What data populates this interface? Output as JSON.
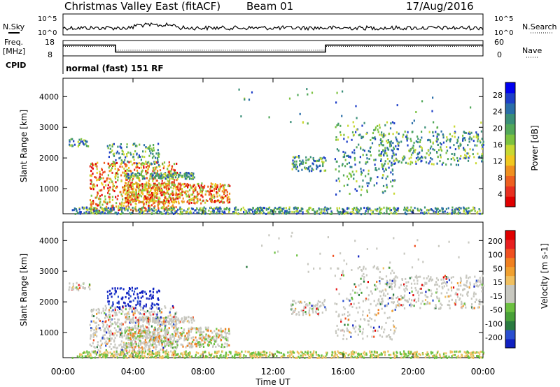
{
  "header": {
    "title": "Christmas Valley East (fitACF)",
    "beam": "Beam 01",
    "date": "17/Aug/2016"
  },
  "top_labels": {
    "nsky": "N.Sky",
    "nsearch": "N.Search",
    "freq": "Freq.",
    "freq_unit": "[MHz]",
    "nave": "Nave",
    "cpid": "CPID",
    "cpid_value": "normal (fast) 151 RF",
    "noise_ticks": [
      "10^5",
      "10^0"
    ],
    "freq_ticks": [
      "18",
      "8"
    ],
    "nave_ticks": [
      "60",
      "0"
    ]
  },
  "chart_data": [
    {
      "type": "line",
      "name": "noise_and_frequency",
      "x": [
        "00:00",
        "03:00",
        "15:00",
        "24:00"
      ],
      "frequency_mhz_levels": [
        {
          "from": "00:00",
          "to": "03:00",
          "value": 15
        },
        {
          "from": "03:00",
          "to": "15:00",
          "value": 10.5
        },
        {
          "from": "15:00",
          "to": "24:00",
          "value": 15
        }
      ],
      "nave_levels": [
        {
          "from": "00:00",
          "to": "03:00",
          "value": 37
        },
        {
          "from": "03:00",
          "to": "15:00",
          "value": 22
        },
        {
          "from": "15:00",
          "to": "24:00",
          "value": 37
        }
      ]
    },
    {
      "type": "heatmap",
      "name": "power",
      "ylabel": "Slant Range [km]",
      "xlim": [
        0,
        24
      ],
      "ylim": [
        180,
        4600
      ],
      "y_ticks": [
        "1000",
        "2000",
        "3000",
        "4000"
      ],
      "colorbar_label": "Power [dB]",
      "colorbar_ticks": [
        "28",
        "24",
        "20",
        "16",
        "12",
        "8",
        "4"
      ],
      "colorbar_colors": [
        "#0000f0",
        "#1e3fc8",
        "#2a6ea8",
        "#3a8f78",
        "#52a85a",
        "#7cc240",
        "#c8d832",
        "#f0c820",
        "#f09020",
        "#ee6020",
        "#e83020",
        "#e00000"
      ]
    },
    {
      "type": "heatmap",
      "name": "velocity",
      "ylabel": "Slant Range [km]",
      "xlim": [
        0,
        24
      ],
      "ylim": [
        180,
        4600
      ],
      "y_ticks": [
        "1000",
        "2000",
        "3000",
        "4000"
      ],
      "colorbar_label": "Velocity [m s-1]",
      "colorbar_ticks": [
        "200",
        "100",
        "50",
        "15",
        "-15",
        "-50",
        "-100",
        "-200"
      ],
      "colorbar_colors": [
        "#1020c0",
        "#2a4fd0",
        "#2a7a40",
        "#48a038",
        "#6cc040",
        "#c8c8c0",
        "#c8c8c0",
        "#f0c060",
        "#f0a030",
        "#f08020",
        "#f05020",
        "#e82020",
        "#e00000"
      ]
    }
  ],
  "x_axis": {
    "ticks": [
      "00:00",
      "04:00",
      "08:00",
      "12:00",
      "16:00",
      "20:00",
      "00:00"
    ],
    "label": "Time UT"
  }
}
